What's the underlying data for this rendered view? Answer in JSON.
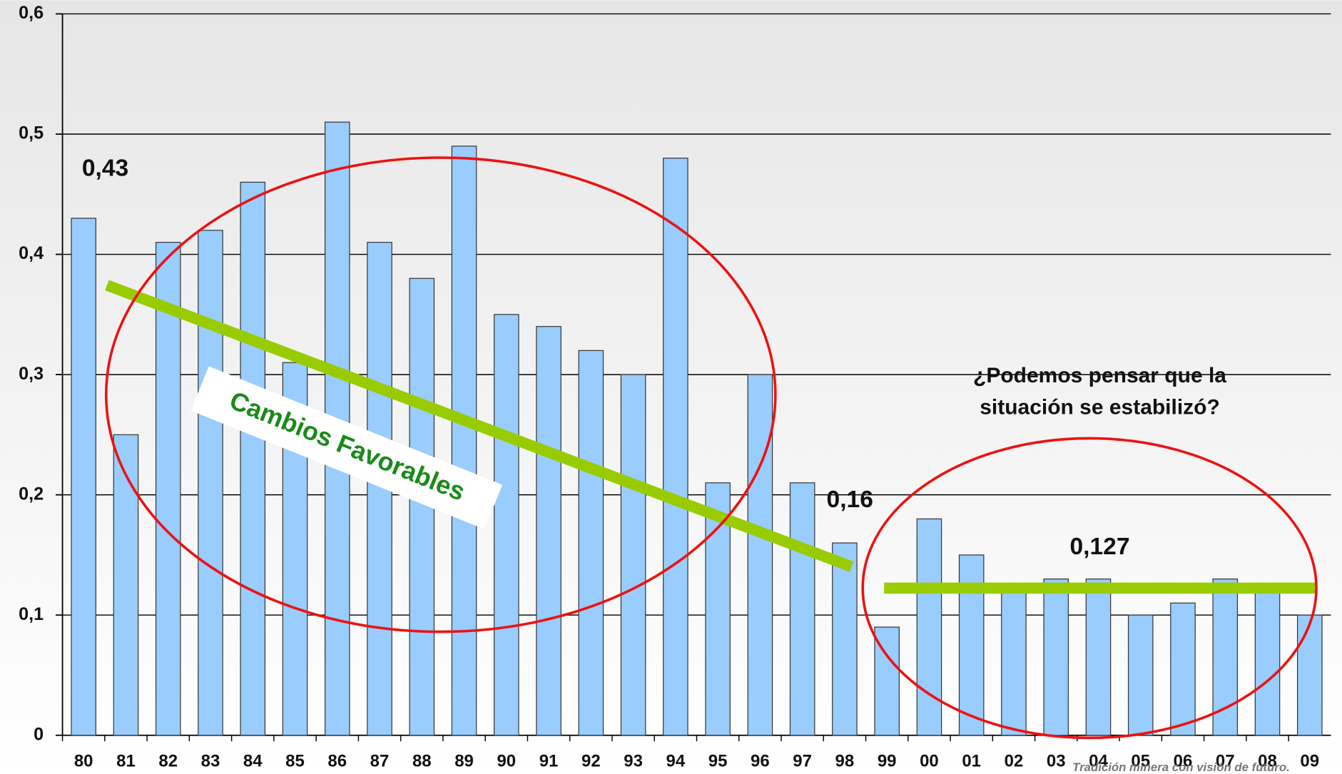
{
  "chart_data": {
    "type": "bar",
    "categories": [
      "80",
      "81",
      "82",
      "83",
      "84",
      "85",
      "86",
      "87",
      "88",
      "89",
      "90",
      "91",
      "92",
      "93",
      "94",
      "95",
      "96",
      "97",
      "98",
      "99",
      "00",
      "01",
      "02",
      "03",
      "04",
      "05",
      "06",
      "07",
      "08",
      "09"
    ],
    "values": [
      0.43,
      0.25,
      0.41,
      0.42,
      0.46,
      0.31,
      0.51,
      0.41,
      0.38,
      0.49,
      0.35,
      0.34,
      0.32,
      0.3,
      0.48,
      0.21,
      0.3,
      0.21,
      0.16,
      0.09,
      0.18,
      0.15,
      0.12,
      0.13,
      0.13,
      0.1,
      0.11,
      0.13,
      0.12,
      0.1
    ],
    "color": "#99ccff",
    "ylim": [
      0,
      0.6
    ],
    "yticks": [
      0,
      {
        "value": 0.1,
        "label": "0,1"
      },
      {
        "value": 0.2,
        "label": "0,2"
      },
      {
        "value": 0.3,
        "label": "0,3"
      },
      {
        "value": 0.4,
        "label": "0,4"
      },
      {
        "value": 0.5,
        "label": "0,5"
      },
      {
        "value": 0.6,
        "label": "0,6"
      }
    ],
    "grid": true,
    "annotations": [
      "0,43",
      "0,16",
      "0,127",
      "Cambios Favorables",
      "¿Podemos pensar que la",
      "situación se estabilizó?",
      "Tradición minera con visión de futuro."
    ]
  }
}
